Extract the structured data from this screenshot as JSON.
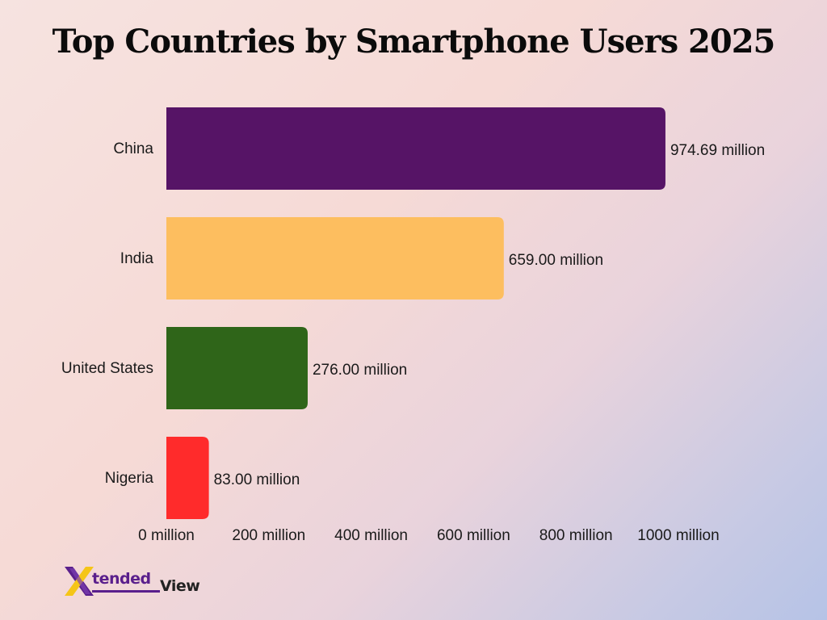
{
  "chart_data": {
    "type": "bar",
    "orientation": "horizontal",
    "title": "Top Countries by Smartphone Users 2025",
    "categories": [
      "China",
      "India",
      "United States",
      "Nigeria"
    ],
    "values": [
      974.69,
      659.0,
      276.0,
      83.0
    ],
    "value_labels": [
      "974.69 million",
      "659.00 million",
      "276.00 million",
      "83.00 million"
    ],
    "colors": [
      "#561466",
      "#fdbe5f",
      "#2f6519",
      "#ff2b2b"
    ],
    "x_ticks": [
      0,
      200,
      400,
      600,
      800,
      1000
    ],
    "x_tick_labels": [
      "0 million",
      "200 million",
      "400 million",
      "600 million",
      "800 million",
      "1000 million"
    ],
    "xlim": [
      0,
      1000
    ],
    "grid": false,
    "legend": "none"
  },
  "logo": {
    "text_main": "tended",
    "text_secondary": "View",
    "accent_color": "#5a1f8c",
    "highlight_color": "#f5c518"
  }
}
